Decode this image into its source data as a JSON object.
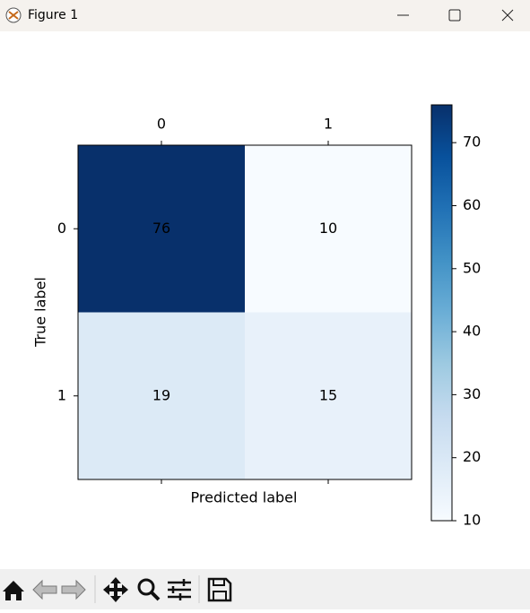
{
  "window": {
    "title": "Figure 1"
  },
  "chart_data": {
    "type": "heatmap",
    "x_categories": [
      "0",
      "1"
    ],
    "y_categories": [
      "0",
      "1"
    ],
    "values": [
      [
        76,
        10
      ],
      [
        19,
        15
      ]
    ],
    "xlabel": "Predicted label",
    "ylabel": "True label",
    "colormap": "Blues",
    "clim": [
      10,
      76
    ],
    "colorbar_ticks": [
      10,
      20,
      30,
      40,
      50,
      60,
      70
    ]
  }
}
